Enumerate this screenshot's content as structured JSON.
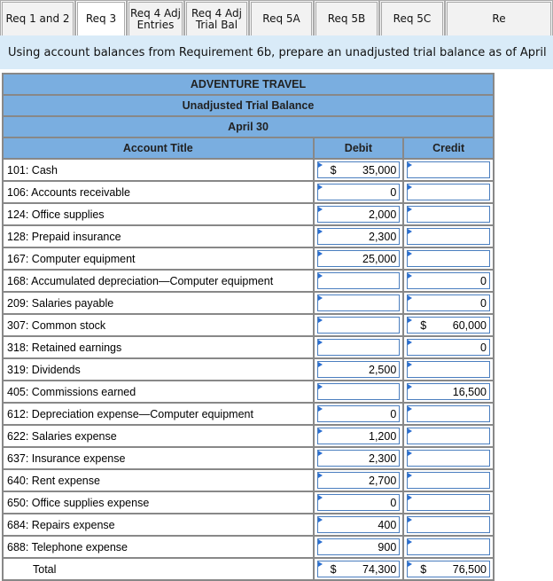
{
  "tabs": [
    {
      "label": "Req 1 and 2"
    },
    {
      "label": "Req 3",
      "active": true
    },
    {
      "label": "Req 4 Adj Entries"
    },
    {
      "label": "Req 4 Adj Trial Bal"
    },
    {
      "label": "Req 5A"
    },
    {
      "label": "Req 5B"
    },
    {
      "label": "Req 5C"
    },
    {
      "label": "Re"
    }
  ],
  "instruction": "Using account balances from Requirement 6b, prepare an unadjusted trial balance as of April",
  "report": {
    "company": "ADVENTURE TRAVEL",
    "title": "Unadjusted Trial Balance",
    "date": "April 30",
    "col_account": "Account Title",
    "col_debit": "Debit",
    "col_credit": "Credit",
    "rows": [
      {
        "account": "101: Cash",
        "debit": "35,000",
        "credit": "",
        "debit_cur": "$",
        "credit_cur": ""
      },
      {
        "account": "106: Accounts receivable",
        "debit": "0",
        "credit": ""
      },
      {
        "account": "124: Office supplies",
        "debit": "2,000",
        "credit": ""
      },
      {
        "account": "128: Prepaid insurance",
        "debit": "2,300",
        "credit": ""
      },
      {
        "account": "167: Computer equipment",
        "debit": "25,000",
        "credit": ""
      },
      {
        "account": "168: Accumulated depreciation—Computer equipment",
        "debit": "",
        "credit": "0"
      },
      {
        "account": "209: Salaries payable",
        "debit": "",
        "credit": "0"
      },
      {
        "account": "307: Common stock",
        "debit": "",
        "credit": "60,000",
        "credit_cur": "$"
      },
      {
        "account": "318: Retained earnings",
        "debit": "",
        "credit": "0"
      },
      {
        "account": "319: Dividends",
        "debit": "2,500",
        "credit": ""
      },
      {
        "account": "405: Commissions earned",
        "debit": "",
        "credit": "16,500"
      },
      {
        "account": "612: Depreciation expense—Computer equipment",
        "debit": "0",
        "credit": ""
      },
      {
        "account": "622: Salaries expense",
        "debit": "1,200",
        "credit": ""
      },
      {
        "account": "637: Insurance expense",
        "debit": "2,300",
        "credit": ""
      },
      {
        "account": "640: Rent expense",
        "debit": "2,700",
        "credit": ""
      },
      {
        "account": "650: Office supplies expense",
        "debit": "0",
        "credit": ""
      },
      {
        "account": "684: Repairs expense",
        "debit": "400",
        "credit": ""
      },
      {
        "account": "688: Telephone expense",
        "debit": "900",
        "credit": ""
      }
    ],
    "total": {
      "label": "Total",
      "debit": "74,300",
      "credit": "76,500",
      "debit_cur": "$",
      "credit_cur": "$"
    }
  },
  "colors": {
    "header_bg": "#7aaee0",
    "instruction_bg": "#d9ebf8",
    "input_border": "#4a7ebf"
  }
}
